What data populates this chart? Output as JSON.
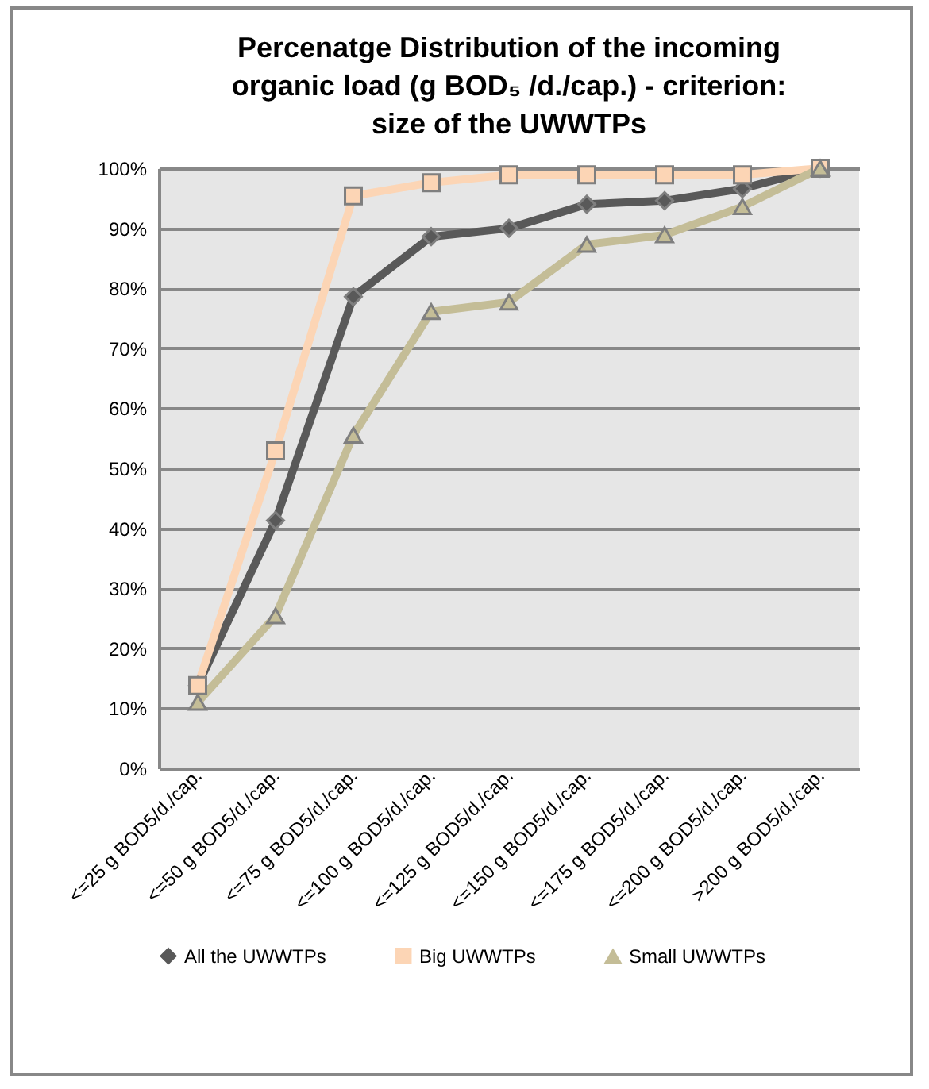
{
  "chart_data": {
    "type": "line",
    "title": "Percenatge Distribution of the incoming organic load (g BOD₅ /d./cap.) - criterion: size of the UWWTPs",
    "categories": [
      "<=25  g BOD5/d./cap.",
      "<=50  g BOD5/d./cap.",
      "<=75  g BOD5/d./cap.",
      "<=100  g BOD5/d./cap.",
      "<=125  g BOD5/d./cap.",
      "<=150  g BOD5/d./cap.",
      "<=175  g BOD5/d./cap.",
      "<=200  g BOD5/d./cap.",
      ">200  g BOD5/d./cap."
    ],
    "series": [
      {
        "name": "All the UWWTPs",
        "color": "#595959",
        "marker": "diamond",
        "values": [
          13.8,
          41.3,
          78.6,
          88.6,
          90.0,
          94.0,
          94.6,
          96.6,
          100
        ]
      },
      {
        "name": "Big UWWTPs",
        "color": "#fcd5b5",
        "marker": "square",
        "values": [
          13.8,
          52.9,
          95.4,
          97.6,
          98.9,
          98.9,
          98.9,
          98.9,
          100
        ]
      },
      {
        "name": "Small UWWTPs",
        "color": "#c4bd97",
        "marker": "triangle",
        "values": [
          11.0,
          25.4,
          55.5,
          76.1,
          77.7,
          87.3,
          88.9,
          93.6,
          100
        ]
      }
    ],
    "ylim": [
      0,
      100
    ],
    "yticks": [
      {
        "value": 0,
        "label": "0%"
      },
      {
        "value": 10,
        "label": "10%"
      },
      {
        "value": 20,
        "label": "20%"
      },
      {
        "value": 30,
        "label": "30%"
      },
      {
        "value": 40,
        "label": "40%"
      },
      {
        "value": 50,
        "label": "50%"
      },
      {
        "value": 60,
        "label": "60%"
      },
      {
        "value": 70,
        "label": "70%"
      },
      {
        "value": 80,
        "label": "80%"
      },
      {
        "value": 90,
        "label": "90%"
      },
      {
        "value": 100,
        "label": "100%"
      }
    ],
    "grid": "y",
    "legend": "bottom",
    "line_style": "solid"
  }
}
